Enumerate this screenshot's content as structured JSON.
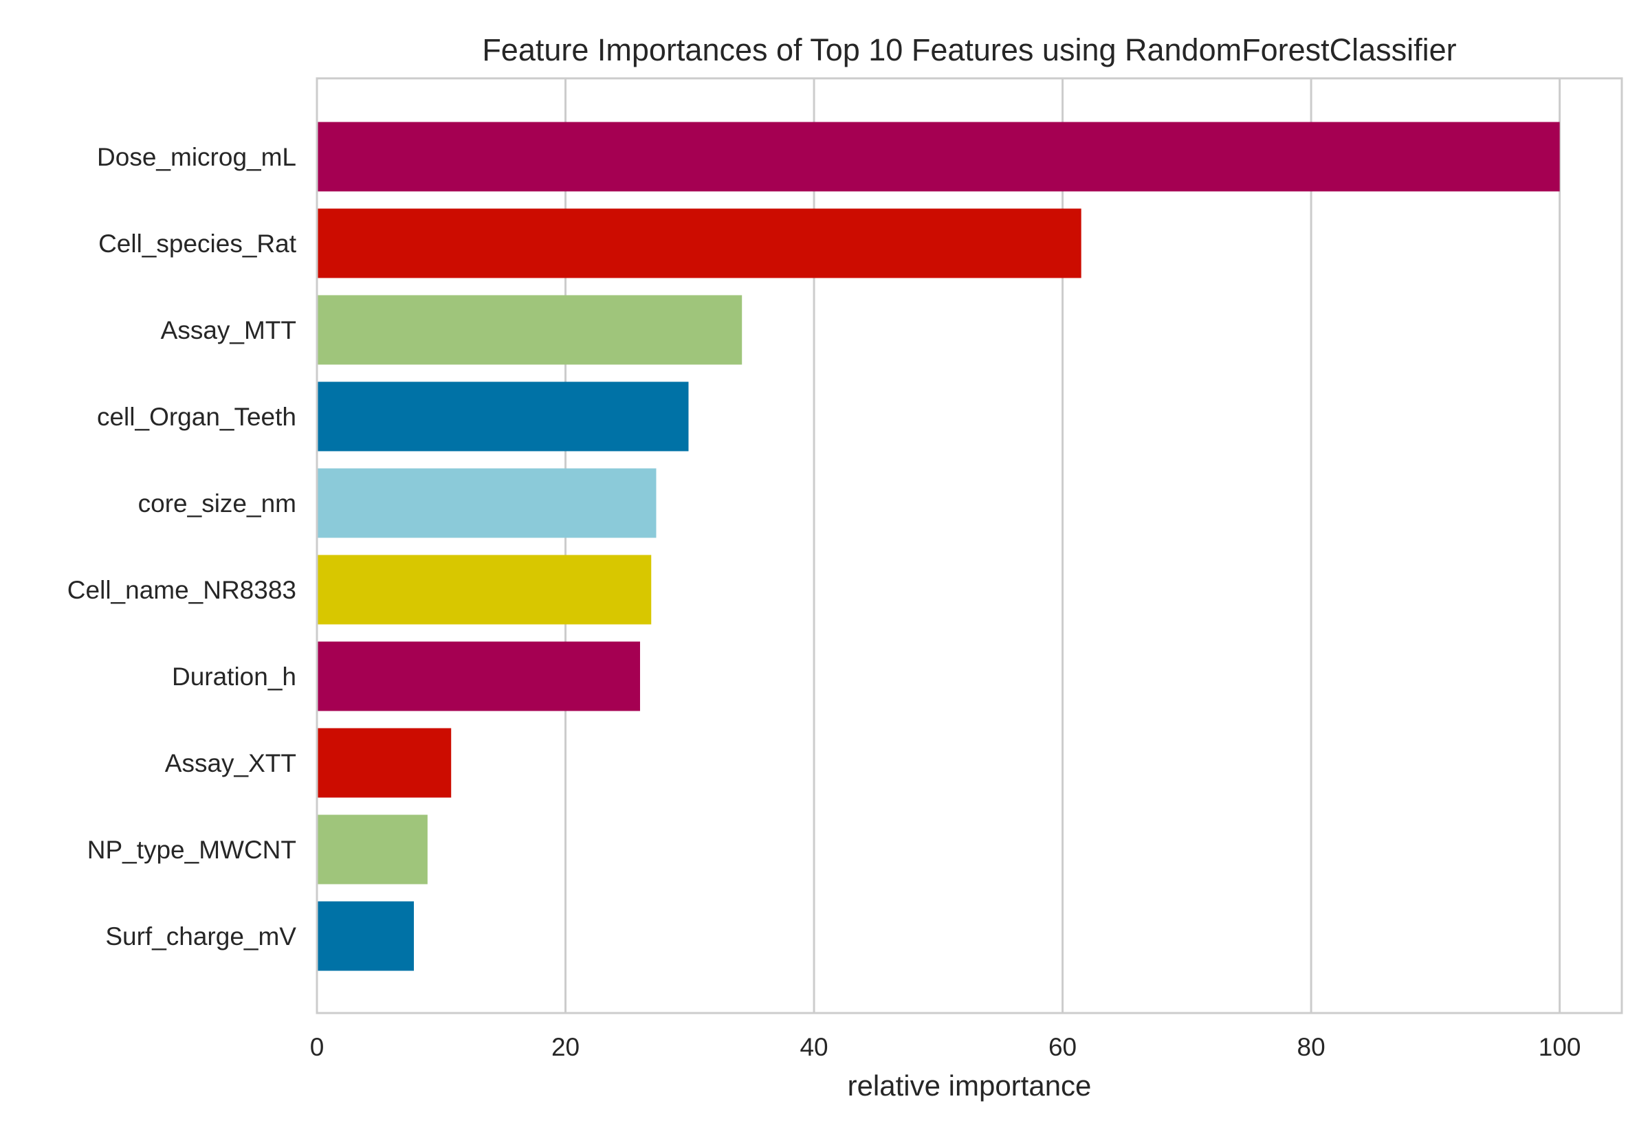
{
  "chart_data": {
    "type": "bar",
    "orientation": "horizontal",
    "title": "Feature Importances of Top 10 Features using RandomForestClassifier",
    "xlabel": "relative importance",
    "ylabel": "",
    "xlim": [
      0,
      105
    ],
    "xticks": [
      0,
      20,
      40,
      60,
      80,
      100
    ],
    "grid": "vertical",
    "legend": "none",
    "categories": [
      "Dose_microg_mL",
      "Cell_species_Rat",
      "Assay_MTT",
      "cell_Organ_Teeth",
      "core_size_nm",
      "Cell_name_NR8383",
      "Duration_h",
      "Assay_XTT",
      "NP_type_MWCNT",
      "Surf_charge_mV"
    ],
    "values": [
      100,
      61.5,
      34.2,
      29.9,
      27.3,
      26.9,
      26.0,
      10.8,
      8.9,
      7.8
    ],
    "colors": [
      "#a50052",
      "#cc0c00",
      "#9fc57b",
      "#0072a6",
      "#8bcad9",
      "#d8c700",
      "#a50052",
      "#cc0c00",
      "#9fc57b",
      "#0072a6"
    ]
  }
}
